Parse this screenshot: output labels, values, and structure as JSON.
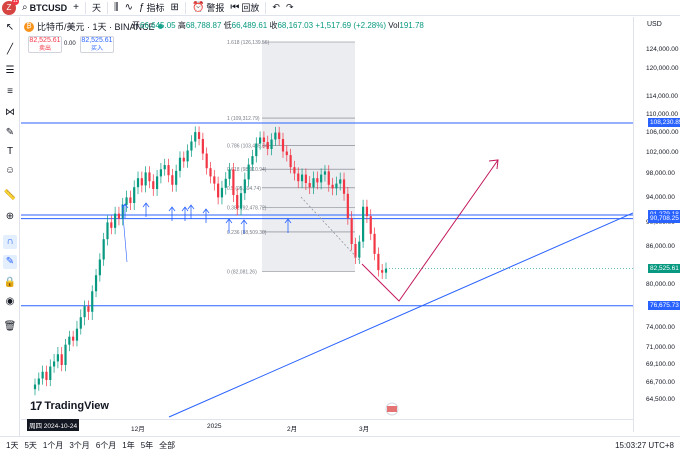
{
  "header": {
    "avatar_letter": "Z",
    "avatar_badge": "11",
    "symbol": "BTCUSD",
    "add_symbol": "+",
    "interval": "天",
    "compare": "∿",
    "indicators": "指标",
    "templates": "⊞",
    "alert": "警报",
    "replay": "回放",
    "undo": "↶",
    "redo": "↷"
  },
  "legend": {
    "name": "比特币/美元 · 1天 · BINANCE",
    "open_label": "开",
    "open": "66,645.05",
    "high_label": "高",
    "high": "68,788.87",
    "low_label": "低",
    "low": "66,489.61",
    "close_label": "收",
    "close": "68,167.03",
    "change": "+1,517.69 (+2.28%)",
    "vol_label": "Vol",
    "vol": "191.78"
  },
  "trade": {
    "sell_price": "82,525.61",
    "sell_label": "卖出",
    "spread": "0.00",
    "buy_price": "82,525.61",
    "buy_label": "买入"
  },
  "price_axis": {
    "currency": "USD",
    "labels": [
      "124,000.00",
      "120,000.00",
      "114,000.00",
      "110,000.00",
      "106,000.00",
      "102,000.00",
      "98,000.00",
      "94,000.00",
      "90,000.00",
      "86,000.00",
      "80,000.00",
      "74,000.00",
      "71,000.00",
      "69,100.00",
      "66,700.00",
      "64,500.00"
    ],
    "badges": [
      {
        "text": "108,230.85",
        "color": "#2962ff"
      },
      {
        "text": "91,279.18",
        "color": "#2962ff"
      },
      {
        "text": "90,708.25",
        "color": "#2962ff"
      },
      {
        "text": "82,525.61",
        "color": "#089981"
      },
      {
        "text": "76,675.73",
        "color": "#2962ff"
      }
    ]
  },
  "time_axis": {
    "date_badge": "周四 2024-10-24",
    "labels": [
      "12月",
      "2025",
      "2月",
      "3月"
    ]
  },
  "fib_labels": [
    "1.618 (126,139.56)",
    "1 (109,312.79)",
    "0.786 (103,485.34)",
    "0.618 (98,910.94)",
    "0.5 (95,694.74)",
    "0.382 (92,478.72)",
    "0.236 (88,509.30)",
    "0 (82,081.26)"
  ],
  "bottom": {
    "ranges": [
      "1天",
      "5天",
      "1个月",
      "3个月",
      "6个月",
      "1年",
      "5年",
      "全部"
    ],
    "clock": "15:03:27 UTC+8"
  },
  "branding": {
    "logo_text": "TradingView"
  },
  "colors": {
    "up": "#089981",
    "down": "#f23645",
    "level": "#2962ff",
    "trend": "#2962ff",
    "projection": "#c2185b",
    "fib": "#787b86"
  },
  "chart_data": {
    "type": "candlestick",
    "symbol": "BTCUSD",
    "interval": "1D",
    "ylim": [
      62000,
      127000
    ],
    "horizontal_levels": [
      108230.85,
      91279.18,
      90708.25,
      76675.73
    ],
    "last_price": 82525.61,
    "fib_levels": [
      126139.56,
      109312.79,
      103485.34,
      98910.94,
      95694.74,
      92478.72,
      88509.3,
      82081.26
    ],
    "closes": [
      66500,
      67300,
      68200,
      67100,
      68900,
      69500,
      70300,
      69100,
      71500,
      72700,
      72100,
      73900,
      75200,
      76600,
      75800,
      79000,
      81500,
      84000,
      87300,
      90100,
      89200,
      91500,
      90700,
      92900,
      94100,
      93200,
      95800,
      97300,
      96100,
      98300,
      96800,
      95500,
      97600,
      98900,
      99700,
      97800,
      96200,
      98600,
      101100,
      100400,
      102500,
      104300,
      106200,
      104800,
      101900,
      99100,
      97600,
      96400,
      94100,
      95700,
      97200,
      98900,
      94500,
      92300,
      94800,
      97100,
      99800,
      101400,
      103900,
      105100,
      104200,
      102800,
      104700,
      106100,
      104800,
      102300,
      101600,
      99300,
      98100,
      96800,
      97900,
      96500,
      95800,
      97300,
      96600,
      97900,
      98500,
      96200,
      95600,
      96400,
      97100,
      94700,
      90800,
      86500,
      84300,
      86900,
      92600,
      91100,
      88200,
      84900,
      82300,
      81900,
      82525
    ]
  }
}
